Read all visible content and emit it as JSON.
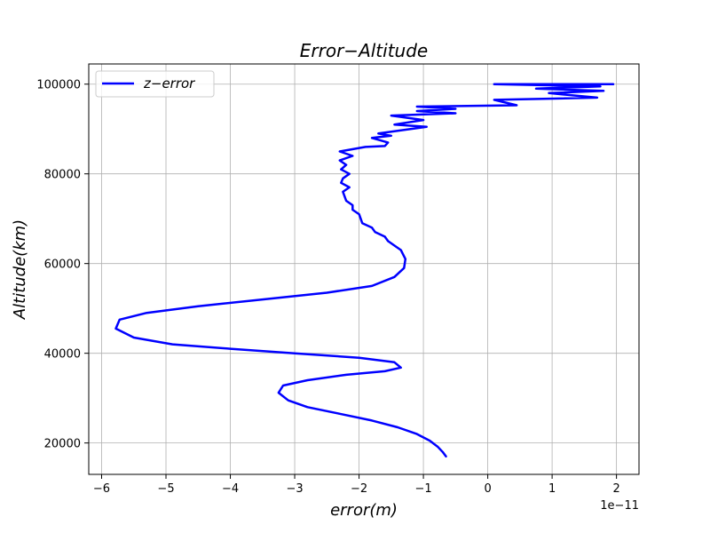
{
  "chart_data": {
    "type": "line",
    "title": "Error−Altitude",
    "xlabel": "error(m)",
    "ylabel": "Altitude(km)",
    "x_offset_label": "1e−11",
    "x_scale": 1e-11,
    "xlim": [
      -6.2,
      2.35
    ],
    "ylim": [
      13000,
      104500
    ],
    "xticks": [
      -6,
      -5,
      -4,
      -3,
      -2,
      -1,
      0,
      1,
      2
    ],
    "xtick_labels": [
      "−6",
      "−5",
      "−4",
      "−3",
      "−2",
      "−1",
      "0",
      "1",
      "2"
    ],
    "yticks": [
      20000,
      40000,
      60000,
      80000,
      100000
    ],
    "ytick_labels": [
      "20000",
      "40000",
      "60000",
      "80000",
      "100000"
    ],
    "grid": true,
    "legend_position": "upper-left",
    "colors": {
      "series": "#0000ff",
      "grid": "#b0b0b0",
      "axes": "#000000"
    },
    "series": [
      {
        "name": "z−error",
        "x": [
          -0.65,
          -0.7,
          -0.78,
          -0.9,
          -1.1,
          -1.4,
          -1.8,
          -2.3,
          -2.8,
          -3.1,
          -3.25,
          -3.18,
          -2.8,
          -2.2,
          -1.6,
          -1.35,
          -1.45,
          -2.0,
          -3.0,
          -4.0,
          -4.9,
          -5.5,
          -5.78,
          -5.72,
          -5.3,
          -4.5,
          -3.5,
          -2.5,
          -1.8,
          -1.45,
          -1.3,
          -1.28,
          -1.35,
          -1.55,
          -1.6,
          -1.75,
          -1.8,
          -1.95,
          -2.0,
          -2.1,
          -2.1,
          -2.2,
          -2.25,
          -2.15,
          -2.28,
          -2.25,
          -2.15,
          -2.28,
          -2.2,
          -2.3,
          -2.1,
          -2.3,
          -1.9,
          -1.6,
          -1.55,
          -1.8,
          -1.5,
          -1.7,
          -0.95,
          -1.45,
          -1.0,
          -1.5,
          -0.5,
          -1.1,
          -0.5,
          -1.1,
          0.45,
          0.1,
          1.7,
          0.95,
          1.8,
          0.75,
          1.75,
          0.1,
          1.95,
          0.1
        ],
        "y": [
          17000,
          18000,
          19200,
          20500,
          22000,
          23500,
          25000,
          26500,
          28000,
          29500,
          31200,
          32800,
          34000,
          35200,
          36000,
          36800,
          38000,
          39000,
          40000,
          41000,
          42000,
          43500,
          45500,
          47500,
          49000,
          50500,
          52000,
          53500,
          55000,
          57000,
          59000,
          61000,
          63000,
          65000,
          66000,
          67000,
          68000,
          69000,
          71000,
          72000,
          73000,
          74000,
          76000,
          77000,
          78000,
          79000,
          80000,
          81000,
          82000,
          83000,
          84000,
          85000,
          86000,
          86200,
          87000,
          88000,
          88500,
          89000,
          90500,
          91000,
          92000,
          93000,
          93500,
          94000,
          94500,
          95000,
          95300,
          96500,
          97000,
          98000,
          98500,
          99000,
          99500,
          100000,
          100000,
          100000
        ]
      }
    ]
  }
}
